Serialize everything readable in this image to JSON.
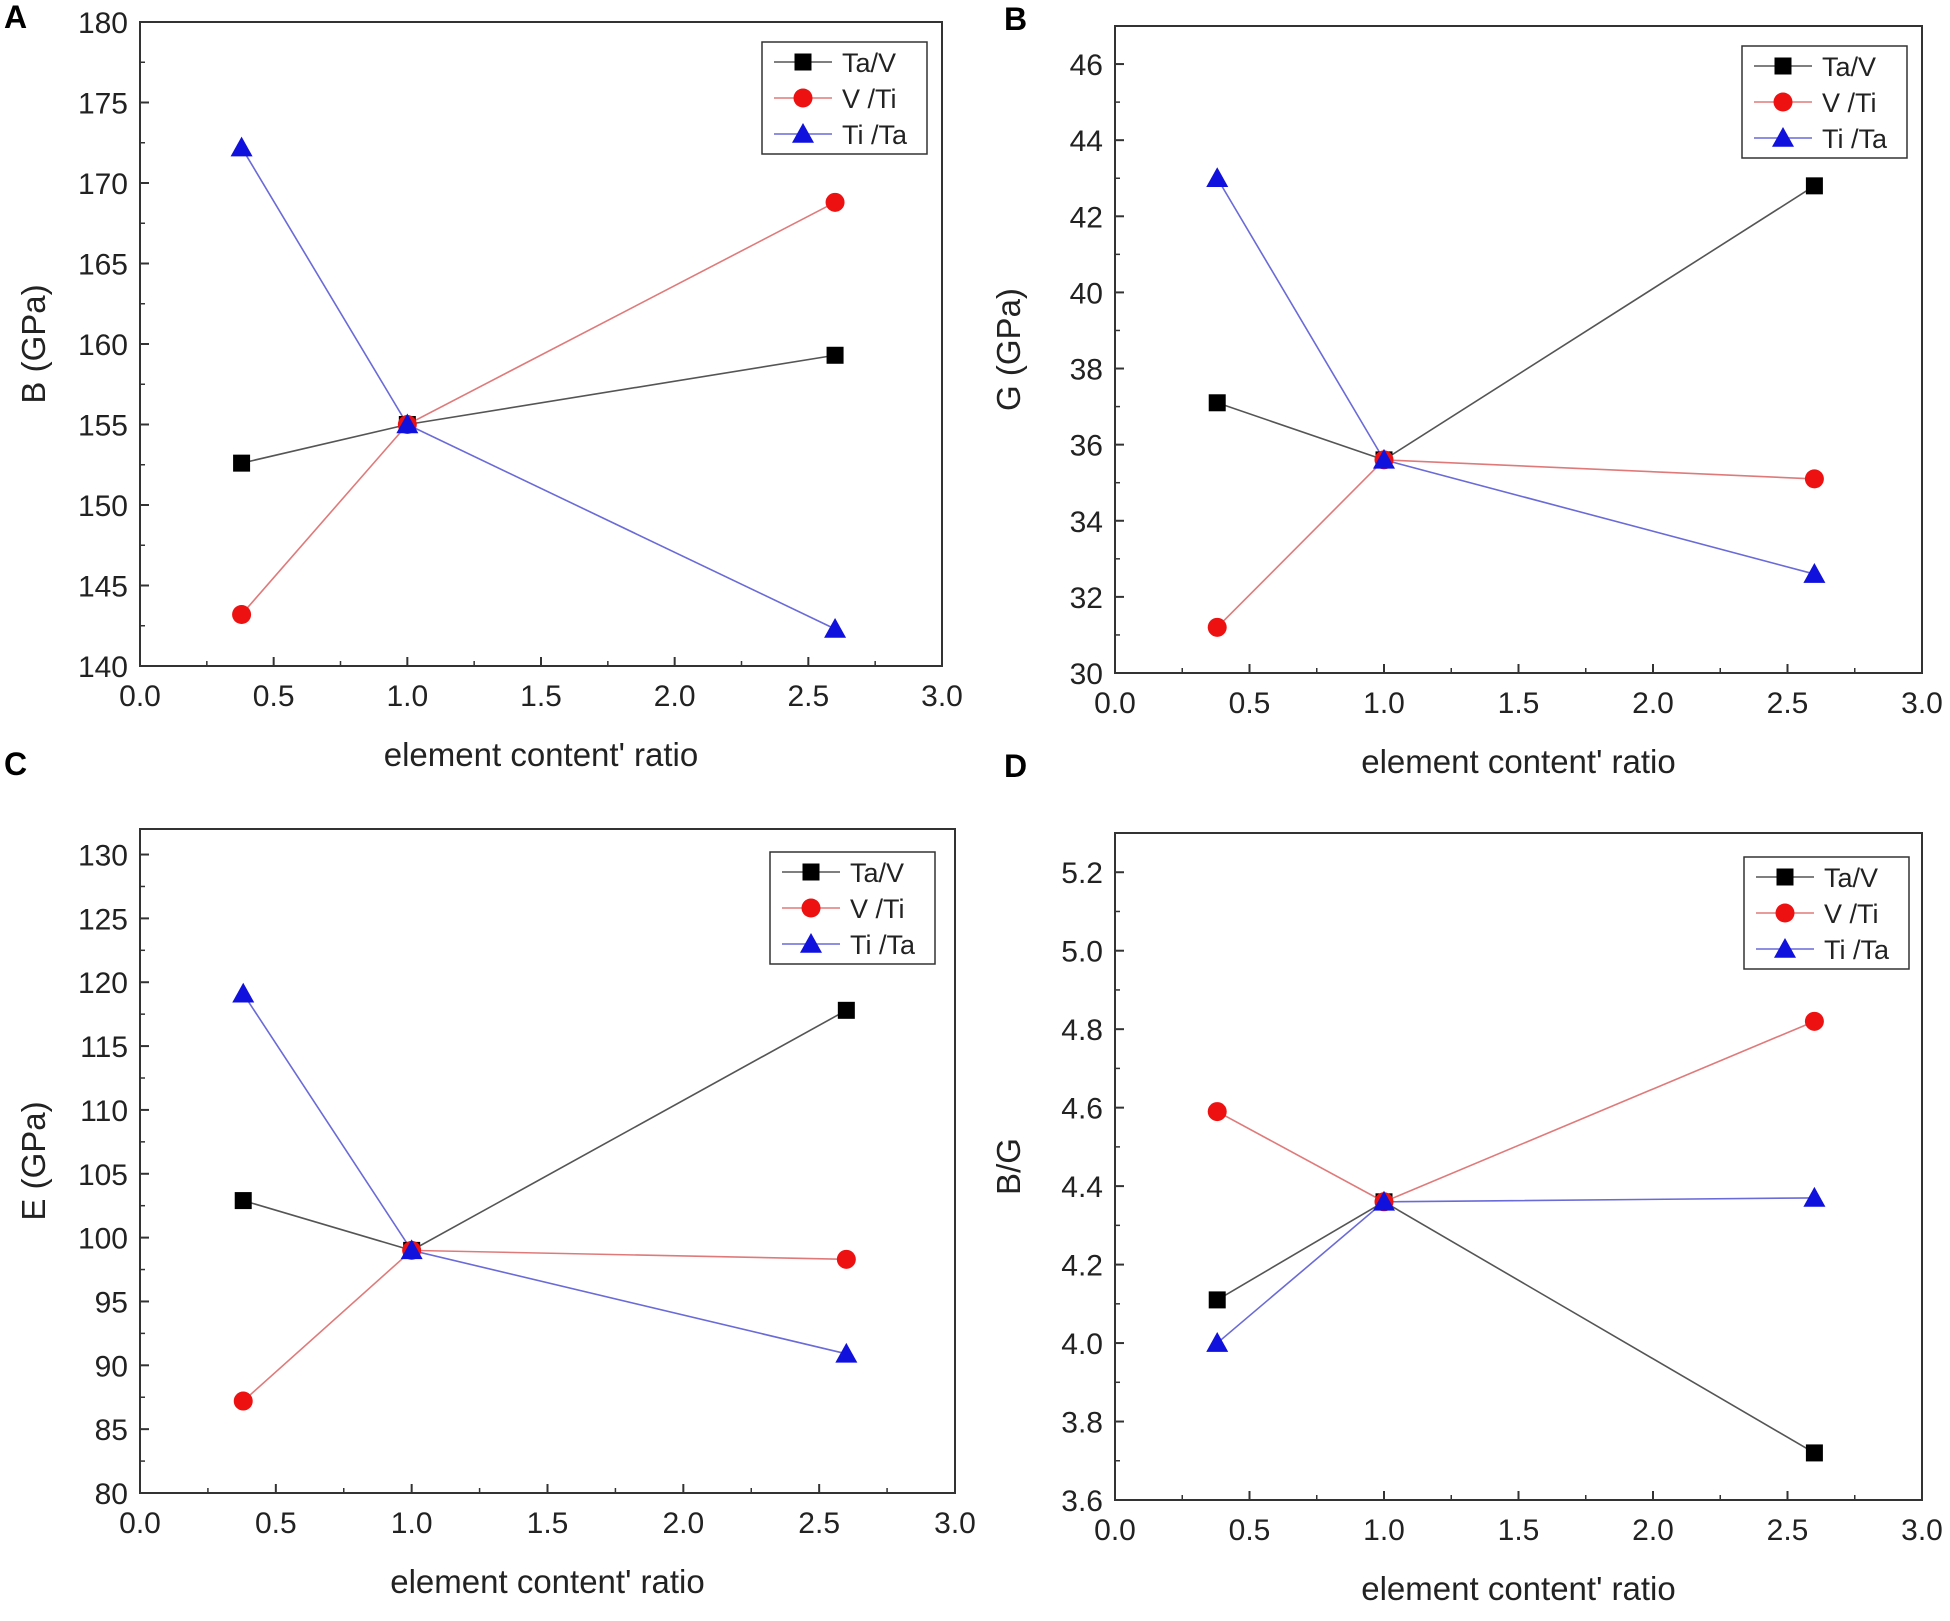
{
  "series_styles": [
    {
      "name": "Ta/V",
      "label": "Ta/V",
      "marker": "square",
      "color": "#000000",
      "line_color": "#555555"
    },
    {
      "name": "V /Ti",
      "label": "V /Ti",
      "marker": "circle",
      "color": "#ee1111",
      "line_color": "#e07a7a"
    },
    {
      "name": "Ti /Ta",
      "label": "Ti /Ta",
      "marker": "triangle",
      "color": "#1111dd",
      "line_color": "#6a6ad8"
    }
  ],
  "chart_data": [
    {
      "id": "A",
      "panel": "A",
      "type": "line",
      "xlabel": "element content' ratio",
      "ylabel": "B (GPa)",
      "xlim": [
        0,
        3
      ],
      "ylim": [
        140,
        180
      ],
      "xticks": [
        "0.0",
        "0.5",
        "1.0",
        "1.5",
        "2.0",
        "2.5",
        "3.0"
      ],
      "yticks": [
        "140",
        "145",
        "150",
        "155",
        "160",
        "165",
        "170",
        "175",
        "180"
      ],
      "x": [
        0.38,
        1.0,
        2.6
      ],
      "legend": "top-right",
      "series": [
        {
          "name": "Ta/V",
          "values": [
            152.6,
            155.0,
            159.3
          ]
        },
        {
          "name": "V /Ti",
          "values": [
            143.2,
            155.0,
            168.8
          ]
        },
        {
          "name": "Ti /Ta",
          "values": [
            172.2,
            155.0,
            142.3
          ]
        }
      ]
    },
    {
      "id": "B",
      "panel": "B",
      "type": "line",
      "xlabel": "element content' ratio",
      "ylabel": "G (GPa)",
      "xlim": [
        0,
        3
      ],
      "ylim": [
        30,
        47
      ],
      "xticks": [
        "0.0",
        "0.5",
        "1.0",
        "1.5",
        "2.0",
        "2.5",
        "3.0"
      ],
      "yticks": [
        "30",
        "32",
        "34",
        "36",
        "38",
        "40",
        "42",
        "44",
        "46"
      ],
      "x": [
        0.38,
        1.0,
        2.6
      ],
      "legend": "top-right",
      "series": [
        {
          "name": "Ta/V",
          "values": [
            37.1,
            35.6,
            42.8
          ]
        },
        {
          "name": "V /Ti",
          "values": [
            31.2,
            35.6,
            35.1
          ]
        },
        {
          "name": "Ti /Ta",
          "values": [
            43.0,
            35.6,
            32.6
          ]
        }
      ]
    },
    {
      "id": "C",
      "panel": "C",
      "type": "line",
      "xlabel": "element content' ratio",
      "ylabel": "E (GPa)",
      "xlim": [
        0,
        3
      ],
      "ylim": [
        80,
        132
      ],
      "xticks": [
        "0.0",
        "0.5",
        "1.0",
        "1.5",
        "2.0",
        "2.5",
        "3.0"
      ],
      "yticks": [
        "80",
        "85",
        "90",
        "95",
        "100",
        "105",
        "110",
        "115",
        "120",
        "125",
        "130"
      ],
      "x": [
        0.38,
        1.0,
        2.6
      ],
      "legend": "top-right",
      "series": [
        {
          "name": "Ta/V",
          "values": [
            102.9,
            99.0,
            117.8
          ]
        },
        {
          "name": "V /Ti",
          "values": [
            87.2,
            99.0,
            98.3
          ]
        },
        {
          "name": "Ti /Ta",
          "values": [
            119.1,
            99.0,
            90.9
          ]
        }
      ]
    },
    {
      "id": "D",
      "panel": "D",
      "type": "line",
      "xlabel": "element content' ratio",
      "ylabel": "B/G",
      "xlim": [
        0,
        3
      ],
      "ylim": [
        3.6,
        5.3
      ],
      "xticks": [
        "0.0",
        "0.5",
        "1.0",
        "1.5",
        "2.0",
        "2.5",
        "3.0"
      ],
      "yticks": [
        "3.6",
        "3.8",
        "4.0",
        "4.2",
        "4.4",
        "4.6",
        "4.8",
        "5.0",
        "5.2"
      ],
      "x": [
        0.38,
        1.0,
        2.6
      ],
      "legend": "top-right",
      "series": [
        {
          "name": "Ta/V",
          "values": [
            4.11,
            4.36,
            3.72
          ]
        },
        {
          "name": "V /Ti",
          "values": [
            4.59,
            4.36,
            4.82
          ]
        },
        {
          "name": "Ti /Ta",
          "values": [
            4.0,
            4.36,
            4.37
          ]
        }
      ]
    }
  ]
}
